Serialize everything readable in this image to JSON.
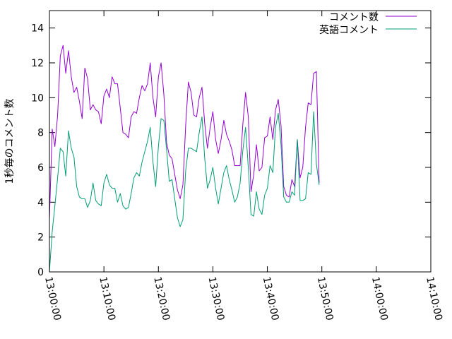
{
  "chart_data": {
    "type": "line",
    "title": "",
    "xlabel": "",
    "ylabel": "1秒毎のコメント数",
    "ylim": [
      0,
      15
    ],
    "xlim_minutes": [
      0,
      70
    ],
    "y_ticks": [
      0,
      2,
      4,
      6,
      8,
      10,
      12,
      14
    ],
    "x_ticks": [
      {
        "minute": 0,
        "label": "13:00:00"
      },
      {
        "minute": 10,
        "label": "13:10:00"
      },
      {
        "minute": 20,
        "label": "13:20:00"
      },
      {
        "minute": 30,
        "label": "13:30:00"
      },
      {
        "minute": 40,
        "label": "13:40:00"
      },
      {
        "minute": 50,
        "label": "13:50:00"
      },
      {
        "minute": 60,
        "label": "14:00:00"
      },
      {
        "minute": 70,
        "label": "14:10:00"
      }
    ],
    "legend_position": "top-right",
    "grid": false,
    "series": [
      {
        "name": "コメント数",
        "color": "#9400d3",
        "points": [
          [
            0.0,
            3.0
          ],
          [
            0.5,
            8.2
          ],
          [
            1.0,
            7.2
          ],
          [
            1.5,
            9.0
          ],
          [
            2.0,
            12.4
          ],
          [
            2.5,
            13.0
          ],
          [
            3.0,
            11.4
          ],
          [
            3.5,
            12.7
          ],
          [
            4.0,
            11.2
          ],
          [
            4.5,
            10.3
          ],
          [
            5.0,
            10.6
          ],
          [
            5.5,
            9.8
          ],
          [
            6.0,
            8.8
          ],
          [
            6.5,
            11.7
          ],
          [
            7.0,
            11.1
          ],
          [
            7.5,
            9.3
          ],
          [
            8.0,
            9.6
          ],
          [
            8.5,
            9.3
          ],
          [
            9.0,
            9.2
          ],
          [
            9.5,
            8.5
          ],
          [
            10.0,
            10.1
          ],
          [
            10.5,
            10.5
          ],
          [
            11.0,
            10.0
          ],
          [
            11.5,
            11.2
          ],
          [
            12.0,
            10.8
          ],
          [
            12.5,
            10.8
          ],
          [
            13.0,
            9.4
          ],
          [
            13.5,
            8.0
          ],
          [
            14.0,
            7.9
          ],
          [
            14.5,
            7.7
          ],
          [
            15.0,
            8.9
          ],
          [
            15.5,
            9.2
          ],
          [
            16.0,
            9.1
          ],
          [
            16.5,
            10.0
          ],
          [
            17.0,
            10.7
          ],
          [
            17.5,
            10.4
          ],
          [
            18.0,
            10.8
          ],
          [
            18.5,
            12.0
          ],
          [
            19.0,
            10.0
          ],
          [
            19.5,
            8.9
          ],
          [
            20.0,
            11.2
          ],
          [
            20.5,
            12.0
          ],
          [
            21.0,
            10.2
          ],
          [
            21.5,
            7.4
          ],
          [
            22.0,
            6.7
          ],
          [
            22.5,
            6.5
          ],
          [
            23.0,
            5.6
          ],
          [
            23.5,
            4.7
          ],
          [
            24.0,
            4.2
          ],
          [
            24.5,
            5.0
          ],
          [
            25.0,
            8.4
          ],
          [
            25.5,
            10.9
          ],
          [
            26.0,
            10.3
          ],
          [
            26.5,
            9.0
          ],
          [
            27.0,
            8.9
          ],
          [
            27.5,
            10.0
          ],
          [
            28.0,
            10.6
          ],
          [
            28.5,
            8.5
          ],
          [
            29.0,
            7.1
          ],
          [
            29.5,
            8.3
          ],
          [
            30.0,
            9.2
          ],
          [
            30.5,
            7.6
          ],
          [
            31.0,
            6.8
          ],
          [
            31.5,
            7.6
          ],
          [
            32.0,
            8.7
          ],
          [
            32.5,
            7.9
          ],
          [
            33.0,
            7.5
          ],
          [
            33.5,
            7.0
          ],
          [
            34.0,
            6.1
          ],
          [
            34.5,
            6.1
          ],
          [
            35.0,
            6.1
          ],
          [
            35.5,
            8.5
          ],
          [
            36.0,
            10.3
          ],
          [
            36.5,
            8.9
          ],
          [
            37.0,
            4.6
          ],
          [
            37.5,
            5.6
          ],
          [
            38.0,
            7.3
          ],
          [
            38.5,
            5.8
          ],
          [
            39.0,
            6.0
          ],
          [
            39.5,
            7.7
          ],
          [
            40.0,
            7.8
          ],
          [
            40.5,
            8.9
          ],
          [
            41.0,
            7.6
          ],
          [
            41.5,
            9.3
          ],
          [
            42.0,
            9.9
          ],
          [
            42.5,
            8.4
          ],
          [
            43.0,
            4.9
          ],
          [
            43.5,
            4.4
          ],
          [
            44.0,
            4.3
          ],
          [
            44.5,
            5.3
          ],
          [
            45.0,
            4.9
          ],
          [
            45.5,
            7.6
          ],
          [
            46.0,
            5.4
          ],
          [
            46.5,
            6.0
          ],
          [
            47.0,
            8.3
          ],
          [
            47.5,
            9.7
          ],
          [
            48.0,
            9.6
          ],
          [
            48.5,
            11.4
          ],
          [
            49.0,
            11.5
          ],
          [
            49.5,
            5.1
          ]
        ]
      },
      {
        "name": "英語コメント",
        "color": "#009e73",
        "points": [
          [
            0.0,
            0.0
          ],
          [
            0.5,
            2.3
          ],
          [
            1.0,
            3.8
          ],
          [
            1.5,
            5.4
          ],
          [
            2.0,
            7.1
          ],
          [
            2.5,
            6.9
          ],
          [
            3.0,
            5.5
          ],
          [
            3.5,
            8.1
          ],
          [
            4.0,
            7.1
          ],
          [
            4.5,
            6.6
          ],
          [
            5.0,
            4.9
          ],
          [
            5.5,
            4.3
          ],
          [
            6.0,
            4.2
          ],
          [
            6.5,
            4.2
          ],
          [
            7.0,
            3.7
          ],
          [
            7.5,
            4.1
          ],
          [
            8.0,
            5.1
          ],
          [
            8.5,
            4.1
          ],
          [
            9.0,
            3.9
          ],
          [
            9.5,
            3.8
          ],
          [
            10.0,
            5.1
          ],
          [
            10.5,
            5.6
          ],
          [
            11.0,
            5.0
          ],
          [
            11.5,
            4.8
          ],
          [
            12.0,
            4.8
          ],
          [
            12.5,
            4.0
          ],
          [
            13.0,
            4.5
          ],
          [
            13.5,
            3.8
          ],
          [
            14.0,
            3.6
          ],
          [
            14.5,
            3.7
          ],
          [
            15.0,
            4.5
          ],
          [
            15.5,
            5.4
          ],
          [
            16.0,
            5.7
          ],
          [
            16.5,
            5.5
          ],
          [
            17.0,
            6.3
          ],
          [
            17.5,
            6.9
          ],
          [
            18.0,
            7.5
          ],
          [
            18.5,
            8.3
          ],
          [
            19.0,
            6.3
          ],
          [
            19.5,
            4.9
          ],
          [
            20.0,
            7.2
          ],
          [
            20.5,
            8.8
          ],
          [
            21.0,
            8.7
          ],
          [
            21.5,
            7.0
          ],
          [
            22.0,
            5.2
          ],
          [
            22.5,
            5.3
          ],
          [
            23.0,
            4.2
          ],
          [
            23.5,
            3.1
          ],
          [
            24.0,
            2.6
          ],
          [
            24.5,
            3.0
          ],
          [
            25.0,
            5.8
          ],
          [
            25.5,
            7.1
          ],
          [
            26.0,
            7.1
          ],
          [
            26.5,
            7.0
          ],
          [
            27.0,
            6.9
          ],
          [
            27.5,
            8.0
          ],
          [
            28.0,
            8.9
          ],
          [
            28.5,
            6.5
          ],
          [
            29.0,
            4.8
          ],
          [
            29.5,
            5.3
          ],
          [
            30.0,
            6.0
          ],
          [
            30.5,
            4.8
          ],
          [
            31.0,
            3.9
          ],
          [
            31.5,
            4.8
          ],
          [
            32.0,
            5.7
          ],
          [
            32.5,
            6.1
          ],
          [
            33.0,
            5.3
          ],
          [
            33.5,
            4.7
          ],
          [
            34.0,
            4.0
          ],
          [
            34.5,
            4.3
          ],
          [
            35.0,
            5.1
          ],
          [
            35.5,
            7.0
          ],
          [
            36.0,
            8.3
          ],
          [
            36.5,
            6.0
          ],
          [
            37.0,
            3.3
          ],
          [
            37.5,
            3.2
          ],
          [
            38.0,
            4.6
          ],
          [
            38.5,
            3.6
          ],
          [
            39.0,
            3.3
          ],
          [
            39.5,
            4.4
          ],
          [
            40.0,
            4.8
          ],
          [
            40.5,
            6.1
          ],
          [
            41.0,
            5.7
          ],
          [
            41.5,
            8.3
          ],
          [
            42.0,
            9.1
          ],
          [
            42.5,
            7.3
          ],
          [
            43.0,
            4.3
          ],
          [
            43.5,
            4.0
          ],
          [
            44.0,
            4.0
          ],
          [
            44.5,
            4.6
          ],
          [
            45.0,
            4.4
          ],
          [
            45.5,
            7.6
          ],
          [
            46.0,
            4.1
          ],
          [
            46.5,
            4.1
          ],
          [
            47.0,
            4.2
          ],
          [
            47.5,
            5.7
          ],
          [
            48.0,
            5.6
          ],
          [
            48.5,
            9.2
          ],
          [
            49.0,
            6.2
          ],
          [
            49.5,
            5.0
          ]
        ]
      }
    ]
  }
}
